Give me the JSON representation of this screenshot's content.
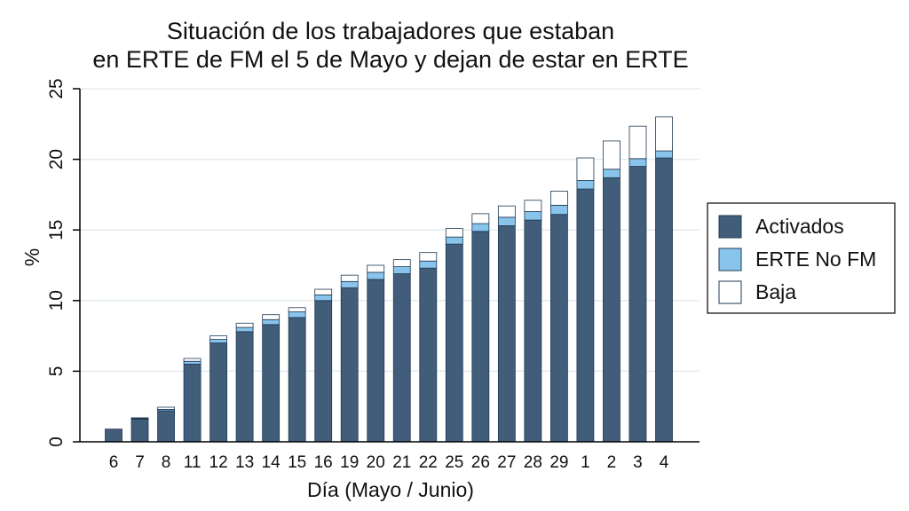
{
  "chart_data": {
    "type": "bar",
    "stacked": true,
    "title": "Situación de los trabajadores que estaban en ERTE de FM el 5 de Mayo y dejan de estar en ERTE",
    "title_lines": [
      "Situación de los trabajadores que estaban",
      "en ERTE de FM el 5 de Mayo y dejan de estar en ERTE"
    ],
    "xlabel": "Día (Mayo / Junio)",
    "ylabel": "%",
    "ylim": [
      0,
      25
    ],
    "yticks": [
      0,
      5,
      10,
      15,
      20,
      25
    ],
    "grid": true,
    "legend_position": "right",
    "categories": [
      "6",
      "7",
      "8",
      "11",
      "12",
      "13",
      "14",
      "15",
      "16",
      "19",
      "20",
      "21",
      "22",
      "25",
      "26",
      "27",
      "28",
      "29",
      "1",
      "2",
      "3",
      "4"
    ],
    "series": [
      {
        "name": "Activados",
        "color": "#415d7a",
        "values": [
          0.9,
          1.6,
          2.2,
          5.5,
          7.0,
          7.8,
          8.3,
          8.8,
          10.0,
          10.9,
          11.5,
          11.9,
          12.3,
          14.0,
          14.9,
          15.3,
          15.7,
          16.1,
          17.9,
          18.7,
          19.5,
          20.1
        ]
      },
      {
        "name": "ERTE No FM",
        "color": "#89c4ec",
        "values": [
          0.0,
          0.05,
          0.1,
          0.2,
          0.25,
          0.3,
          0.35,
          0.4,
          0.4,
          0.45,
          0.5,
          0.5,
          0.5,
          0.5,
          0.55,
          0.6,
          0.6,
          0.65,
          0.6,
          0.6,
          0.55,
          0.5
        ]
      },
      {
        "name": "Baja",
        "color": "#ffffff",
        "values": [
          0.0,
          0.05,
          0.15,
          0.2,
          0.25,
          0.3,
          0.35,
          0.3,
          0.4,
          0.45,
          0.5,
          0.5,
          0.6,
          0.6,
          0.7,
          0.8,
          0.8,
          1.0,
          1.6,
          2.0,
          2.3,
          2.4
        ]
      }
    ]
  }
}
